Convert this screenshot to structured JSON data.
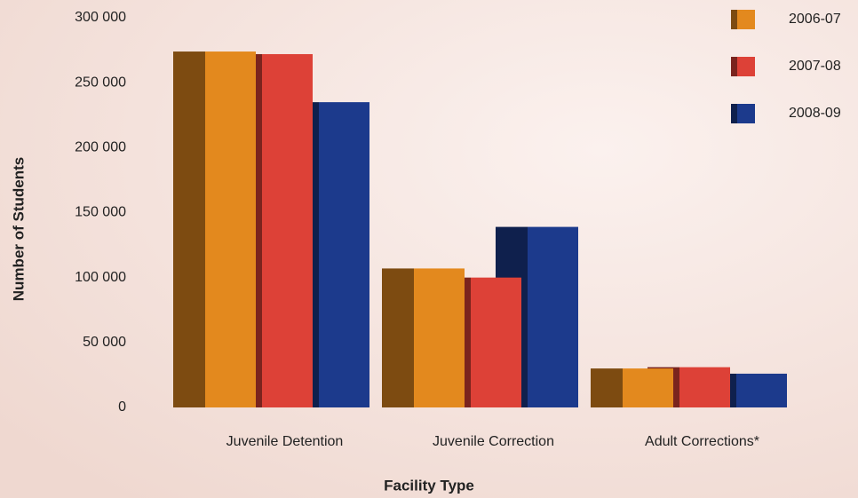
{
  "chart_data": {
    "type": "bar",
    "categories": [
      "Juvenile Detention",
      "Juvenile Correction",
      "Adult Corrections*"
    ],
    "series": [
      {
        "name": "2006-07",
        "color": "#e3891e",
        "values": [
          274000,
          107000,
          30000
        ]
      },
      {
        "name": "2007-08",
        "color": "#dd4137",
        "values": [
          272000,
          100000,
          31000
        ]
      },
      {
        "name": "2008-09",
        "color": "#1c3a8c",
        "values": [
          235000,
          139000,
          26000
        ]
      }
    ],
    "xlabel": "Facility Type",
    "ylabel": "Number of Students",
    "ylim": [
      0,
      300000
    ],
    "yticks": [
      0,
      {
        "value": 50000,
        "label": "50 000"
      },
      {
        "value": 100000,
        "label": "100 000"
      },
      {
        "value": 150000,
        "label": "150 000"
      },
      {
        "value": 200000,
        "label": "200 000"
      },
      {
        "value": 250000,
        "label": "250 000"
      },
      {
        "value": 300000,
        "label": "300 000"
      }
    ],
    "legend": "upper right"
  }
}
